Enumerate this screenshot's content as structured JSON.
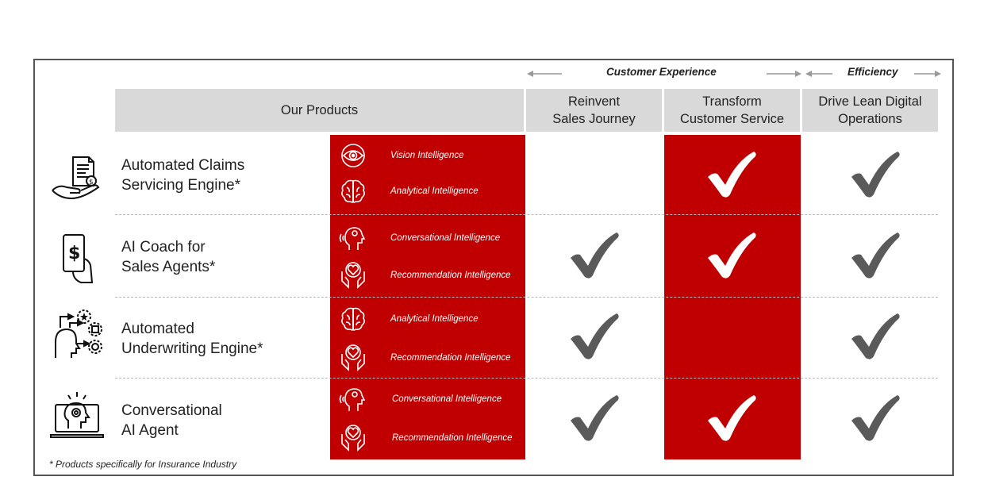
{
  "header": {
    "customer_experience": "Customer Experience",
    "efficiency": "Efficiency",
    "our_products": "Our Products",
    "col_reinvent": "Reinvent\nSales Journey",
    "col_transform": "Transform\nCustomer Service",
    "col_drive": "Drive Lean Digital\nOperations"
  },
  "products": [
    {
      "name": "Automated Claims\nServicing Engine*",
      "icon": "hand-invoice-dollar-icon",
      "capabilities": [
        {
          "label": "Vision Intelligence",
          "icon": "eye-icon"
        },
        {
          "label": "Analytical Intelligence",
          "icon": "brain-icon"
        }
      ],
      "checks": {
        "reinvent": false,
        "transform": true,
        "drive": true
      }
    },
    {
      "name": "AI Coach for\nSales Agents*",
      "icon": "phone-dollar-icon",
      "capabilities": [
        {
          "label": "Conversational Intelligence",
          "icon": "speaking-head-icon"
        },
        {
          "label": "Recommendation Intelligence",
          "icon": "hands-heart-icon"
        }
      ],
      "checks": {
        "reinvent": true,
        "transform": true,
        "drive": true
      }
    },
    {
      "name": "Automated\nUnderwriting Engine*",
      "icon": "head-process-icon",
      "capabilities": [
        {
          "label": "Analytical Intelligence",
          "icon": "brain-icon"
        },
        {
          "label": "Recommendation Intelligence",
          "icon": "hands-heart-icon"
        }
      ],
      "checks": {
        "reinvent": true,
        "transform": false,
        "drive": true
      }
    },
    {
      "name": "Conversational\nAI Agent",
      "icon": "laptop-ai-head-icon",
      "capabilities": [
        {
          "label": "Conversational Intelligence",
          "icon": "speaking-head-icon"
        },
        {
          "label": "Recommendation Intelligence",
          "icon": "hands-heart-icon"
        }
      ],
      "checks": {
        "reinvent": true,
        "transform": true,
        "drive": true
      }
    }
  ],
  "footnote": "* Products specifically for Insurance Industry",
  "colors": {
    "red": "#c00000",
    "header_gray": "#d9d9d9",
    "check_gray": "#5a5a5a",
    "check_white": "#ffffff"
  }
}
